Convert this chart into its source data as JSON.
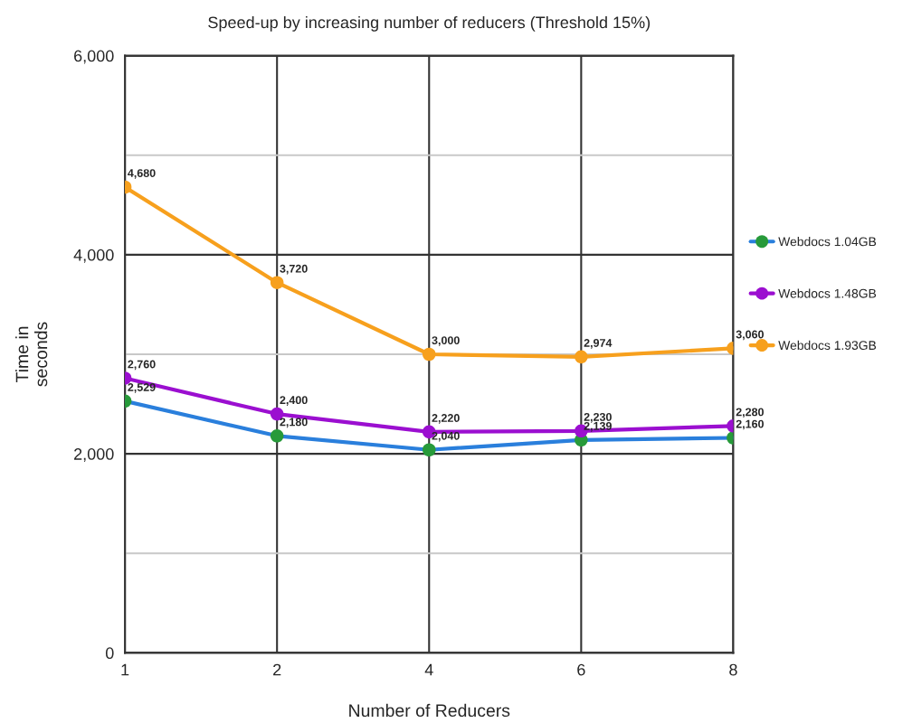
{
  "chart_data": {
    "type": "line",
    "title": "Speed-up by increasing number of reducers (Threshold 15%)",
    "xlabel": "Number of Reducers",
    "ylabel": "Time in\nseconds",
    "categories": [
      "1",
      "2",
      "4",
      "6",
      "8"
    ],
    "series": [
      {
        "name": "Webdocs 1.04GB",
        "color": "#2a7fdc",
        "colors": [
          "#279a3a",
          "#279a3a",
          "#279a3a",
          "#279a3a",
          "#279a3a"
        ],
        "values": [
          2529,
          2180,
          2040,
          2139,
          2160
        ],
        "value_labels": [
          "2,529",
          "2,180",
          "2,040",
          "2,139",
          "2,160"
        ]
      },
      {
        "name": "Webdocs 1.48GB",
        "color": "#9b0fd0",
        "values": [
          2760,
          2400,
          2220,
          2230,
          2280
        ],
        "value_labels": [
          "2,760",
          "2,400",
          "2,220",
          "2,230",
          "2,280"
        ]
      },
      {
        "name": "Webdocs 1.93GB",
        "color": "#f7a01d",
        "values": [
          4680,
          3720,
          3000,
          2974,
          3060
        ],
        "value_labels": [
          "4,680",
          "3,720",
          "3,000",
          "2,974",
          "3,060"
        ]
      }
    ],
    "ylim": [
      0,
      6000
    ],
    "yticks": [
      {
        "value": 0,
        "label": "0"
      },
      {
        "value": 1000,
        "label": null
      },
      {
        "value": 2000,
        "label": "2,000"
      },
      {
        "value": 3000,
        "label": null
      },
      {
        "value": 4000,
        "label": "4,000"
      },
      {
        "value": 5000,
        "label": null
      },
      {
        "value": 6000,
        "label": "6,000"
      }
    ],
    "grid": true,
    "legend": "right",
    "marker": "circle",
    "line_style": "solid"
  }
}
